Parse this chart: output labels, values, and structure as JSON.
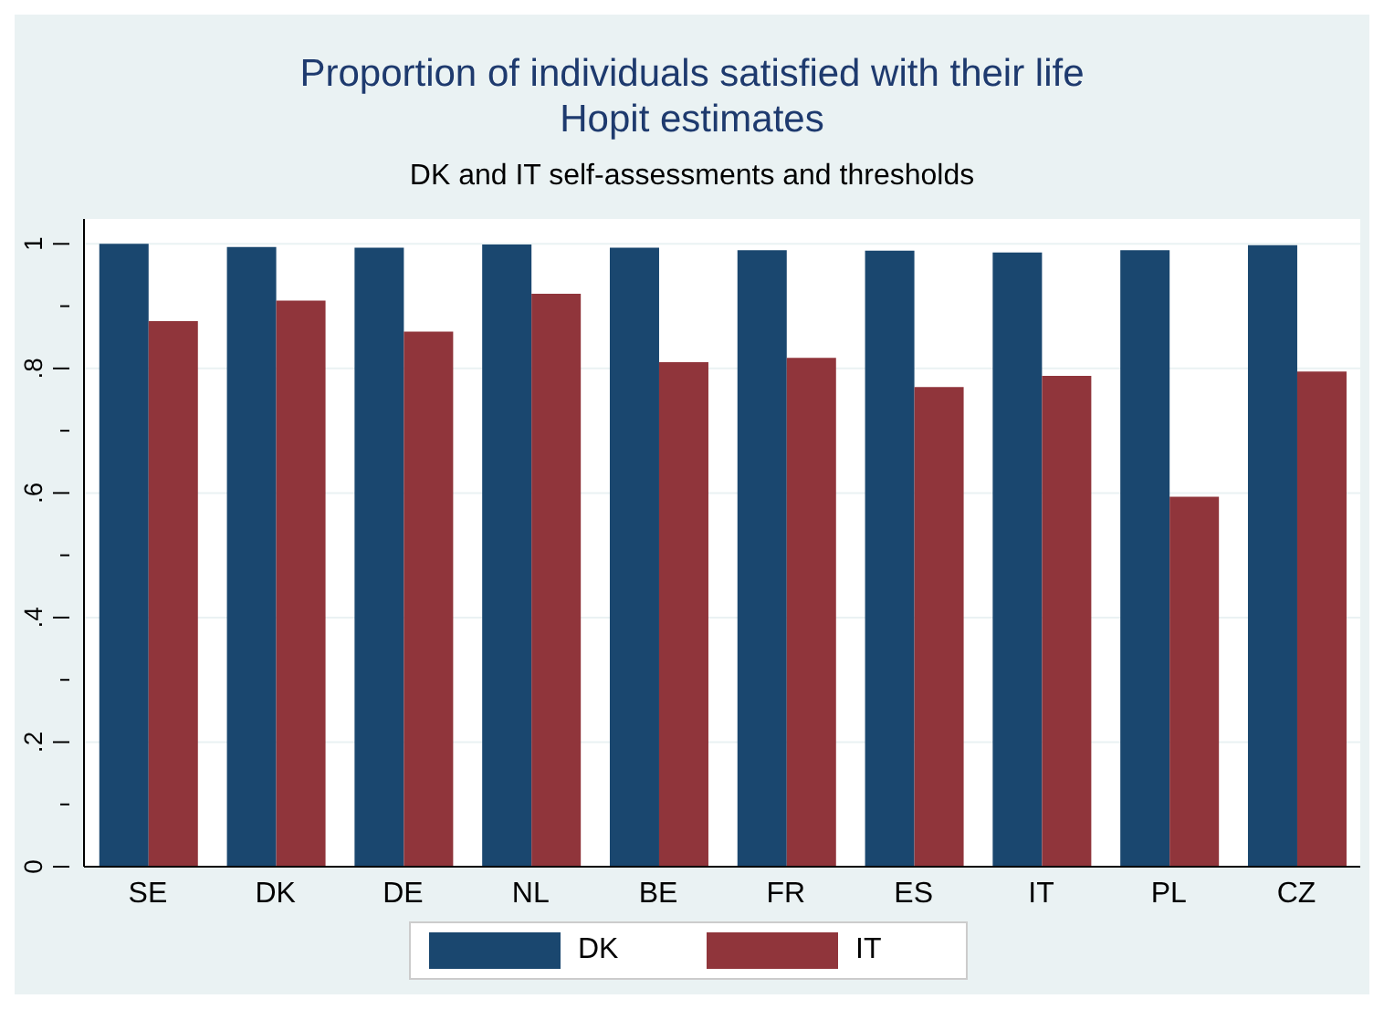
{
  "chart_data": {
    "type": "bar",
    "title": "Proportion of individuals satisfied with their life",
    "subtitle": "Hopit estimates",
    "annotations": [
      "DK and IT self-assessments and thresholds"
    ],
    "categories": [
      "SE",
      "DK",
      "DE",
      "NL",
      "BE",
      "FR",
      "ES",
      "IT",
      "PL",
      "CZ"
    ],
    "series": [
      {
        "name": "DK",
        "color": "#1a476f",
        "values": [
          1.0,
          0.995,
          0.994,
          0.999,
          0.994,
          0.99,
          0.989,
          0.986,
          0.99,
          0.998
        ]
      },
      {
        "name": "IT",
        "color": "#90353b",
        "values": [
          0.876,
          0.909,
          0.859,
          0.92,
          0.81,
          0.817,
          0.77,
          0.788,
          0.594,
          0.795
        ]
      }
    ],
    "ylim": [
      0,
      1.04
    ],
    "yticks": [
      {
        "value": 0,
        "label": "0"
      },
      {
        "value": 0.1,
        "label": null
      },
      {
        "value": 0.2,
        "label": ".2"
      },
      {
        "value": 0.3,
        "label": null
      },
      {
        "value": 0.4,
        "label": ".4"
      },
      {
        "value": 0.5,
        "label": null
      },
      {
        "value": 0.6,
        "label": ".6"
      },
      {
        "value": 0.7,
        "label": null
      },
      {
        "value": 0.8,
        "label": ".8"
      },
      {
        "value": 0.9,
        "label": null
      },
      {
        "value": 1,
        "label": "1"
      }
    ],
    "grid": "y",
    "legend": "bottom"
  }
}
